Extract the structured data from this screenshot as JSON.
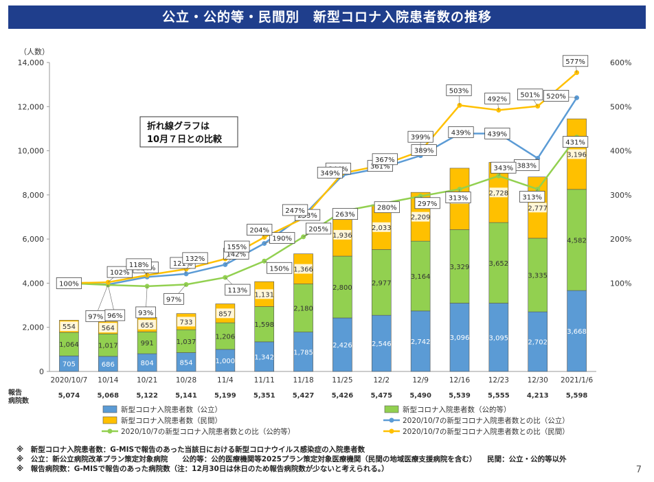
{
  "title": "公立・公的等・民間別　新型コロナ入院患者数の推移",
  "page_number": "7",
  "callout": [
    "折れ線グラフは",
    "10月７日との比較"
  ],
  "hospital_row_label": [
    "報告",
    "病院数"
  ],
  "notes": [
    "※　新型コロナ入院患者数：G-MISで報告のあった当該日における新型コロナウイルス感染症の入院患者数",
    "※　公立：新公立病院改革プラン策定対象病院　　公的等：公的医療機関等2025プラン策定対象医療機関（民間の地域医療支援病院を含む）　　民間：公立・公的等以外",
    "※　報告病院数：G-MISで報告のあった病院数（注：12月30日は休日のため報告病院数が少ないと考えられる。）"
  ],
  "colors": {
    "public": "#5b9bd5",
    "semi": "#92d050",
    "private": "#ffc000",
    "public_line": "#5b9bd5",
    "semi_line": "#92d050",
    "private_line": "#ffc000",
    "title_bg": "#1f3e8c"
  },
  "chart_data": {
    "type": "bar",
    "categories": [
      "2020/10/7",
      "10/14",
      "10/21",
      "10/28",
      "11/4",
      "11/11",
      "11/18",
      "11/25",
      "12/2",
      "12/9",
      "12/16",
      "12/23",
      "12/30",
      "2021/1/6"
    ],
    "hospitals": [
      "5,074",
      "5,068",
      "5,122",
      "5,141",
      "5,199",
      "5,351",
      "5,427",
      "5,426",
      "5,475",
      "5,490",
      "5,539",
      "5,555",
      "4,213",
      "5,598"
    ],
    "ylabel": "（人数）",
    "ylim": [
      0,
      14000
    ],
    "yticks": [
      "0",
      "2,000",
      "4,000",
      "6,000",
      "8,000",
      "10,000",
      "12,000",
      "14,000"
    ],
    "y2lim": [
      -100,
      600
    ],
    "y2ticks": [
      "100%",
      "200%",
      "300%",
      "400%",
      "500%",
      "600%"
    ],
    "stacked": true,
    "series": [
      {
        "name": "新型コロナ入院患者数（公立）",
        "values": [
          705,
          686,
          804,
          854,
          1000,
          1342,
          1785,
          2426,
          2546,
          2742,
          3096,
          3095,
          2702,
          3668
        ]
      },
      {
        "name": "新型コロナ入院患者数（公的等）",
        "values": [
          1064,
          1017,
          991,
          1037,
          1206,
          1598,
          2180,
          2800,
          2977,
          3164,
          3329,
          3652,
          3335,
          4582
        ]
      },
      {
        "name": "新型コロナ入院患者数（民間）",
        "values": [
          554,
          564,
          655,
          733,
          857,
          1131,
          1366,
          1936,
          2033,
          2209,
          2786,
          2728,
          2777,
          3196
        ]
      }
    ],
    "bar_labels": [
      [
        "705",
        "686",
        "804",
        "854",
        "1,000",
        "1,342",
        "1,785",
        "2,426",
        "2,546",
        "2,742",
        "3,096",
        "3,095",
        "2,702",
        "3,668"
      ],
      [
        "1,064",
        "1,017",
        "991",
        "1,037",
        "1,206",
        "1,598",
        "2,180",
        "2,800",
        "2,977",
        "3,164",
        "3,329",
        "3,652",
        "3,335",
        "4,582"
      ],
      [
        "554",
        "564",
        "655",
        "733",
        "857",
        "1,131",
        "1,366",
        "1,936",
        "2,033",
        "2,209",
        "2,786",
        "2,728",
        "2,777",
        "3,196"
      ]
    ],
    "lines": [
      {
        "name": "2020/10/7の新型コロナ入院患者数との比（公立）",
        "values": [
          100,
          97,
          114,
          121,
          142,
          190,
          253,
          344,
          361,
          389,
          439,
          439,
          383,
          520
        ],
        "labels": [
          "100%",
          "97%",
          "114%",
          "121%",
          "142%",
          "190%",
          "253%",
          "344%",
          "361%",
          "389%",
          "439%",
          "439%",
          "383%",
          "520%"
        ]
      },
      {
        "name": "2020/10/7の新型コロナ入院患者数との比（公的等）",
        "values": [
          100,
          96,
          93,
          97,
          113,
          150,
          205,
          263,
          280,
          297,
          313,
          343,
          313,
          431
        ],
        "labels": [
          "100%",
          "96%",
          "93%",
          "97%",
          "113%",
          "150%",
          "205%",
          "263%",
          "280%",
          "297%",
          "313%",
          "343%",
          "313%",
          "431%"
        ]
      },
      {
        "name": "2020/10/7の新型コロナ入院患者数との比（民間）",
        "values": [
          100,
          102,
          118,
          132,
          155,
          204,
          247,
          349,
          367,
          399,
          503,
          492,
          501,
          577
        ],
        "labels": [
          "100%",
          "102%",
          "118%",
          "132%",
          "155%",
          "204%",
          "247%",
          "349%",
          "367%",
          "399%",
          "503%",
          "492%",
          "501%",
          "577%"
        ]
      }
    ]
  }
}
